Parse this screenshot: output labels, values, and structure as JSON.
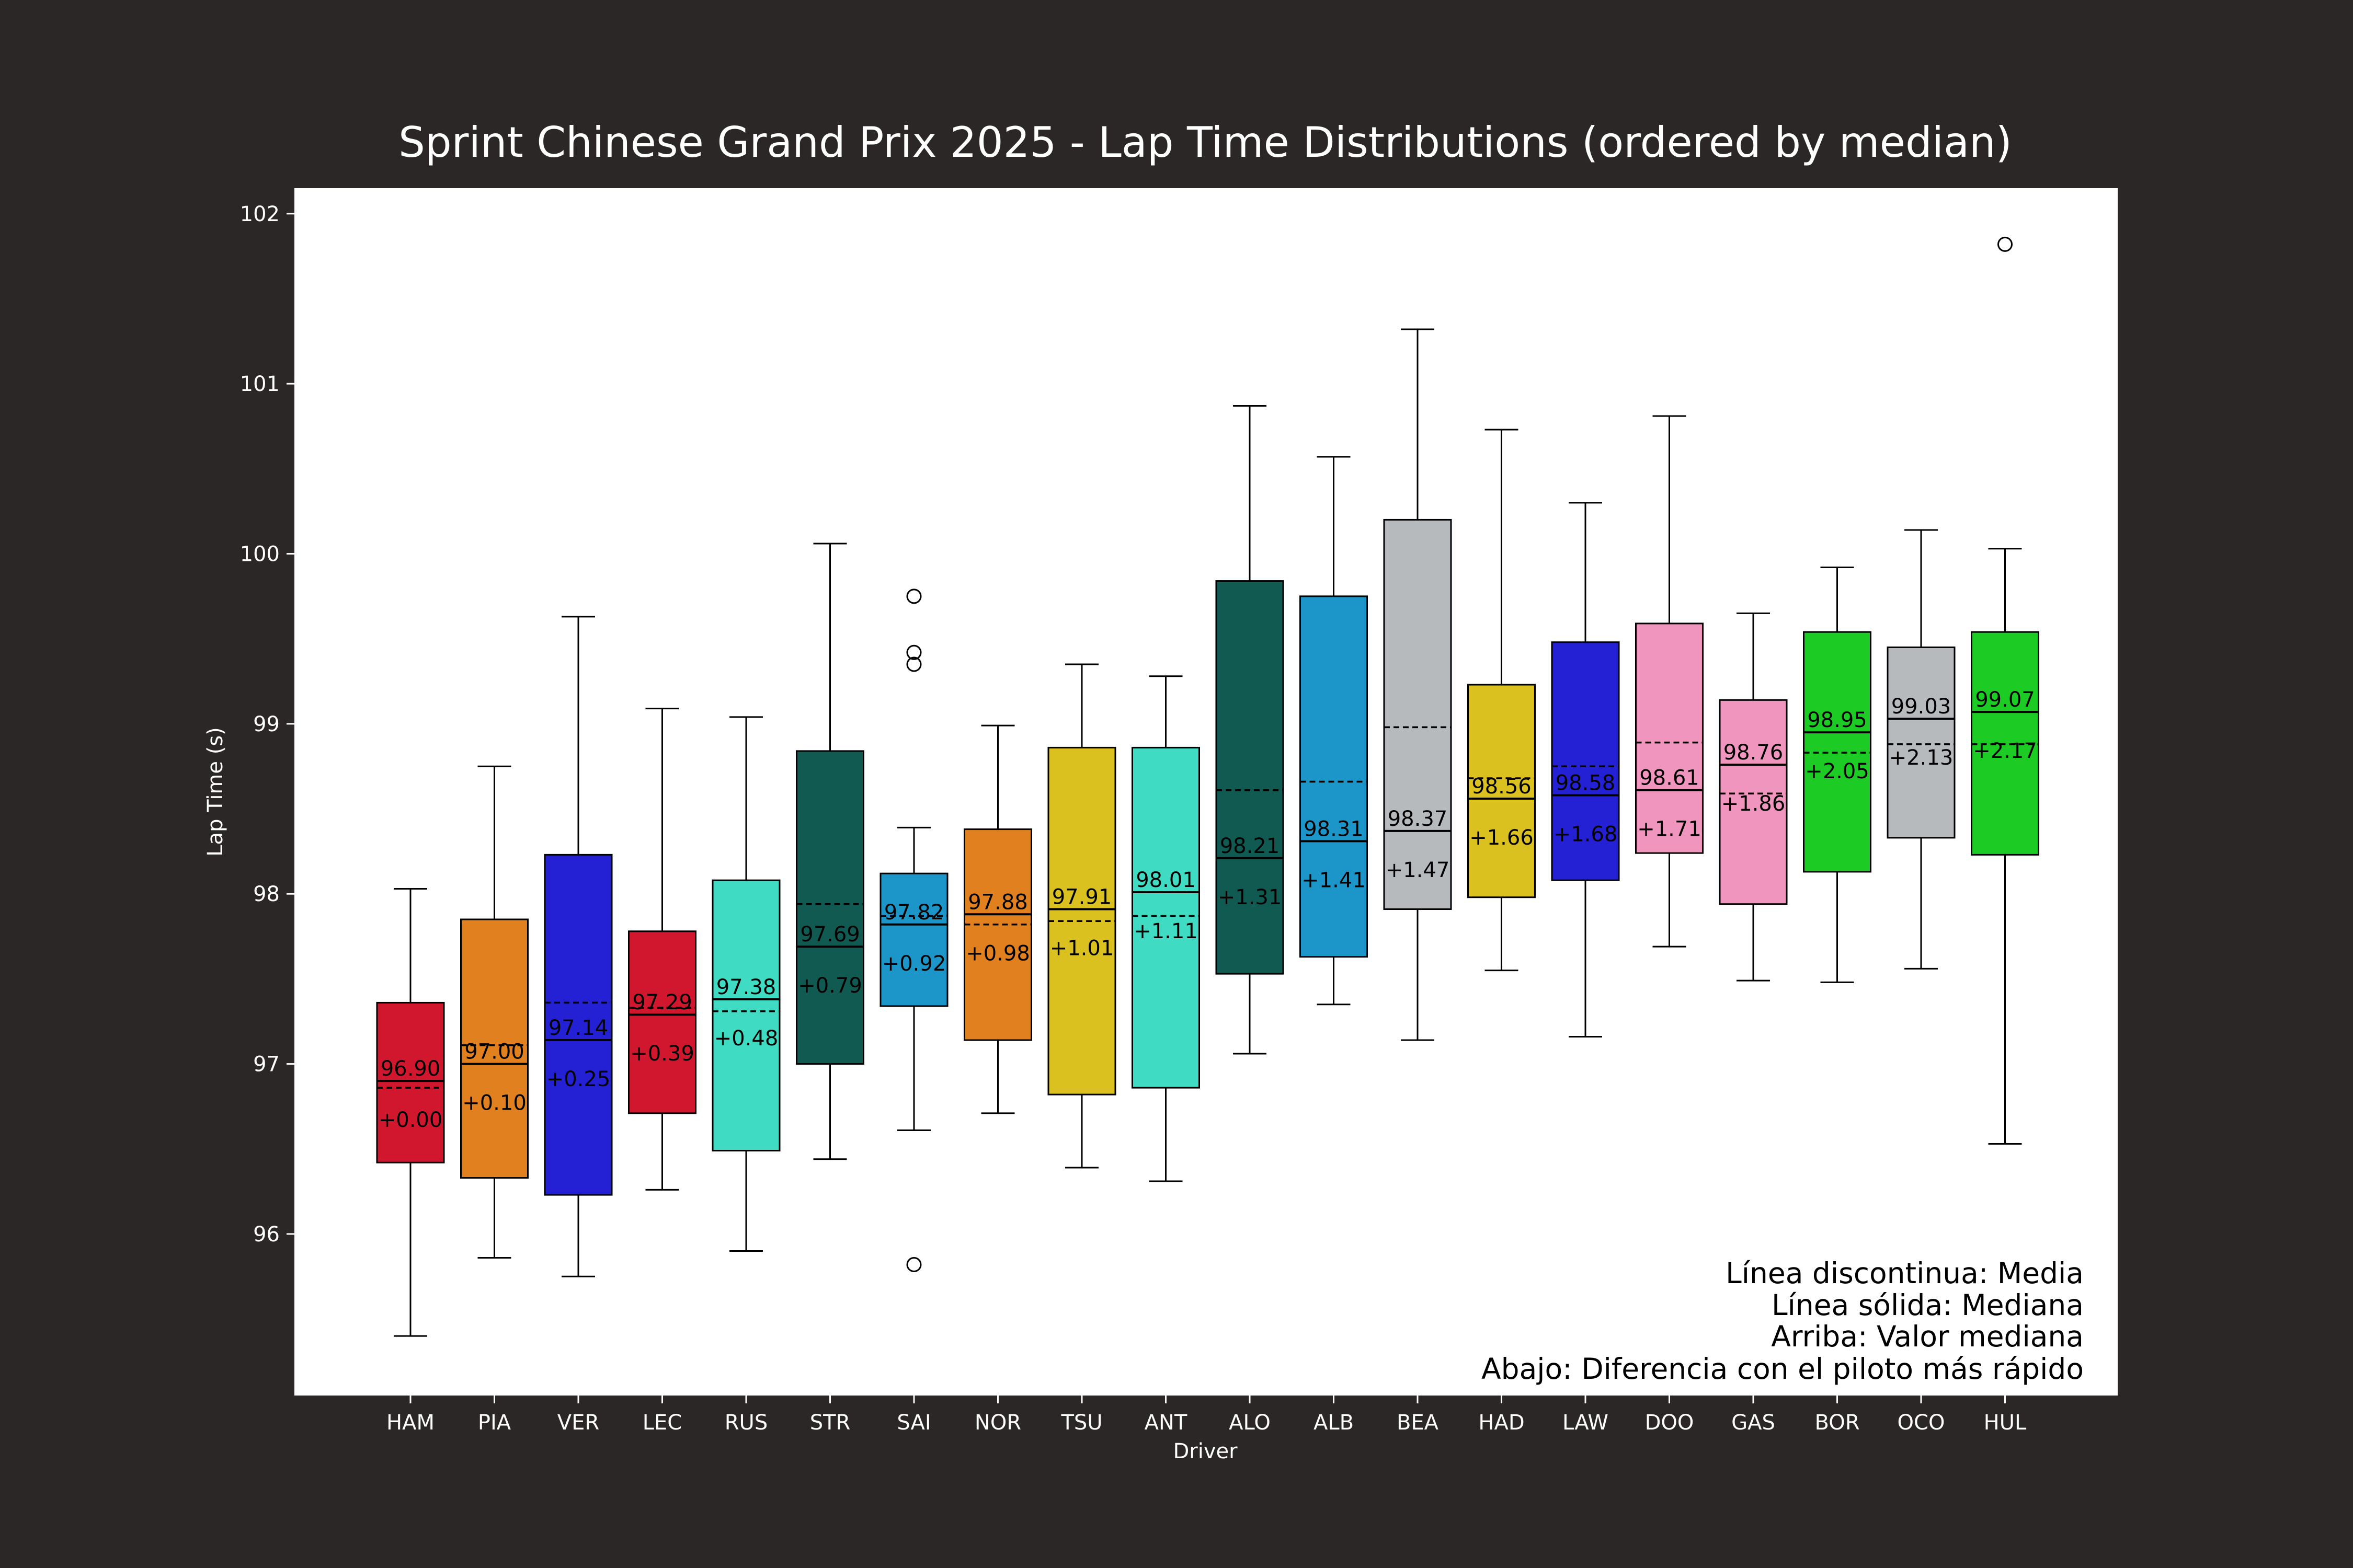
{
  "colors": {
    "figure_bg": "#2a2726",
    "plot_bg": "#ffffff",
    "text_light": "#ffffff",
    "ink": "#000000"
  },
  "chart_data": {
    "type": "box",
    "title": "Sprint Chinese Grand Prix 2025 - Lap Time Distributions (ordered by median)",
    "xlabel": "Driver",
    "ylabel": "Lap Time (s)",
    "ylim": [
      95.05,
      102.15
    ],
    "yticks": [
      "96",
      "97",
      "98",
      "99",
      "100",
      "101",
      "102"
    ],
    "grid": false,
    "legend_notes": [
      "Línea discontinua: Media",
      "Línea sólida: Mediana",
      "Arriba: Valor mediana",
      "Abajo: Diferencia con el piloto más rápido"
    ],
    "legend_position": "bottom-right",
    "drivers": [
      {
        "name": "HAM",
        "color": "#d0172e",
        "whisker_low": 95.4,
        "q1": 96.42,
        "median": 96.9,
        "mean": 96.86,
        "q3": 97.36,
        "whisker_high": 98.03,
        "outliers": [],
        "median_label": "96.90",
        "gap_label": "+0.00"
      },
      {
        "name": "PIA",
        "color": "#e0801e",
        "whisker_low": 95.86,
        "q1": 96.33,
        "median": 97.0,
        "mean": 97.11,
        "q3": 97.85,
        "whisker_high": 98.75,
        "outliers": [],
        "median_label": "97.00",
        "gap_label": "+0.10"
      },
      {
        "name": "VER",
        "color": "#2420d4",
        "whisker_low": 95.75,
        "q1": 96.23,
        "median": 97.14,
        "mean": 97.36,
        "q3": 98.23,
        "whisker_high": 99.63,
        "outliers": [],
        "median_label": "97.14",
        "gap_label": "+0.25"
      },
      {
        "name": "LEC",
        "color": "#d0172e",
        "whisker_low": 96.26,
        "q1": 96.71,
        "median": 97.29,
        "mean": 97.33,
        "q3": 97.78,
        "whisker_high": 99.09,
        "outliers": [],
        "median_label": "97.29",
        "gap_label": "+0.39"
      },
      {
        "name": "RUS",
        "color": "#40dbc3",
        "whisker_low": 95.9,
        "q1": 96.49,
        "median": 97.38,
        "mean": 97.31,
        "q3": 98.08,
        "whisker_high": 99.04,
        "outliers": [],
        "median_label": "97.38",
        "gap_label": "+0.48"
      },
      {
        "name": "STR",
        "color": "#105a52",
        "whisker_low": 96.44,
        "q1": 97.0,
        "median": 97.69,
        "mean": 97.94,
        "q3": 98.84,
        "whisker_high": 100.06,
        "outliers": [],
        "median_label": "97.69",
        "gap_label": "+0.79"
      },
      {
        "name": "SAI",
        "color": "#1c96c8",
        "whisker_low": 96.61,
        "q1": 97.34,
        "median": 97.82,
        "mean": 97.87,
        "q3": 98.12,
        "whisker_high": 98.39,
        "outliers": [
          95.82,
          99.35,
          99.42,
          99.75
        ],
        "median_label": "97.82",
        "gap_label": "+0.92"
      },
      {
        "name": "NOR",
        "color": "#e0801e",
        "whisker_low": 96.71,
        "q1": 97.14,
        "median": 97.88,
        "mean": 97.82,
        "q3": 98.38,
        "whisker_high": 98.99,
        "outliers": [],
        "median_label": "97.88",
        "gap_label": "+0.98"
      },
      {
        "name": "TSU",
        "color": "#dac120",
        "whisker_low": 96.39,
        "q1": 96.82,
        "median": 97.91,
        "mean": 97.84,
        "q3": 98.86,
        "whisker_high": 99.35,
        "outliers": [],
        "median_label": "97.91",
        "gap_label": "+1.01"
      },
      {
        "name": "ANT",
        "color": "#40dbc3",
        "whisker_low": 96.31,
        "q1": 96.86,
        "median": 98.01,
        "mean": 97.87,
        "q3": 98.86,
        "whisker_high": 99.28,
        "outliers": [],
        "median_label": "98.01",
        "gap_label": "+1.11"
      },
      {
        "name": "ALO",
        "color": "#105a52",
        "whisker_low": 97.06,
        "q1": 97.53,
        "median": 98.21,
        "mean": 98.61,
        "q3": 99.84,
        "whisker_high": 100.87,
        "outliers": [],
        "median_label": "98.21",
        "gap_label": "+1.31"
      },
      {
        "name": "ALB",
        "color": "#1c96c8",
        "whisker_low": 97.35,
        "q1": 97.63,
        "median": 98.31,
        "mean": 98.66,
        "q3": 99.75,
        "whisker_high": 100.57,
        "outliers": [],
        "median_label": "98.31",
        "gap_label": "+1.41"
      },
      {
        "name": "BEA",
        "color": "#b6babd",
        "whisker_low": 97.14,
        "q1": 97.91,
        "median": 98.37,
        "mean": 98.98,
        "q3": 100.2,
        "whisker_high": 101.32,
        "outliers": [],
        "median_label": "98.37",
        "gap_label": "+1.47"
      },
      {
        "name": "HAD",
        "color": "#dac120",
        "whisker_low": 97.55,
        "q1": 97.98,
        "median": 98.56,
        "mean": 98.68,
        "q3": 99.23,
        "whisker_high": 100.73,
        "outliers": [],
        "median_label": "98.56",
        "gap_label": "+1.66"
      },
      {
        "name": "LAW",
        "color": "#2420d4",
        "whisker_low": 97.16,
        "q1": 98.08,
        "median": 98.58,
        "mean": 98.75,
        "q3": 99.48,
        "whisker_high": 100.3,
        "outliers": [],
        "median_label": "98.58",
        "gap_label": "+1.68"
      },
      {
        "name": "DOO",
        "color": "#f096be",
        "whisker_low": 97.69,
        "q1": 98.24,
        "median": 98.61,
        "mean": 98.89,
        "q3": 99.59,
        "whisker_high": 100.81,
        "outliers": [],
        "median_label": "98.61",
        "gap_label": "+1.71"
      },
      {
        "name": "GAS",
        "color": "#f096be",
        "whisker_low": 97.49,
        "q1": 97.94,
        "median": 98.76,
        "mean": 98.59,
        "q3": 99.14,
        "whisker_high": 99.65,
        "outliers": [],
        "median_label": "98.76",
        "gap_label": "+1.86"
      },
      {
        "name": "BOR",
        "color": "#1ccc24",
        "whisker_low": 97.48,
        "q1": 98.13,
        "median": 98.95,
        "mean": 98.83,
        "q3": 99.54,
        "whisker_high": 99.92,
        "outliers": [],
        "median_label": "98.95",
        "gap_label": "+2.05"
      },
      {
        "name": "OCO",
        "color": "#b6babd",
        "whisker_low": 97.56,
        "q1": 98.33,
        "median": 99.03,
        "mean": 98.88,
        "q3": 99.45,
        "whisker_high": 100.14,
        "outliers": [],
        "median_label": "99.03",
        "gap_label": "+2.13"
      },
      {
        "name": "HUL",
        "color": "#1ccc24",
        "whisker_low": 96.53,
        "q1": 98.23,
        "median": 99.07,
        "mean": 98.88,
        "q3": 99.54,
        "whisker_high": 100.03,
        "outliers": [
          101.82
        ],
        "median_label": "99.07",
        "gap_label": "+2.17"
      }
    ]
  }
}
